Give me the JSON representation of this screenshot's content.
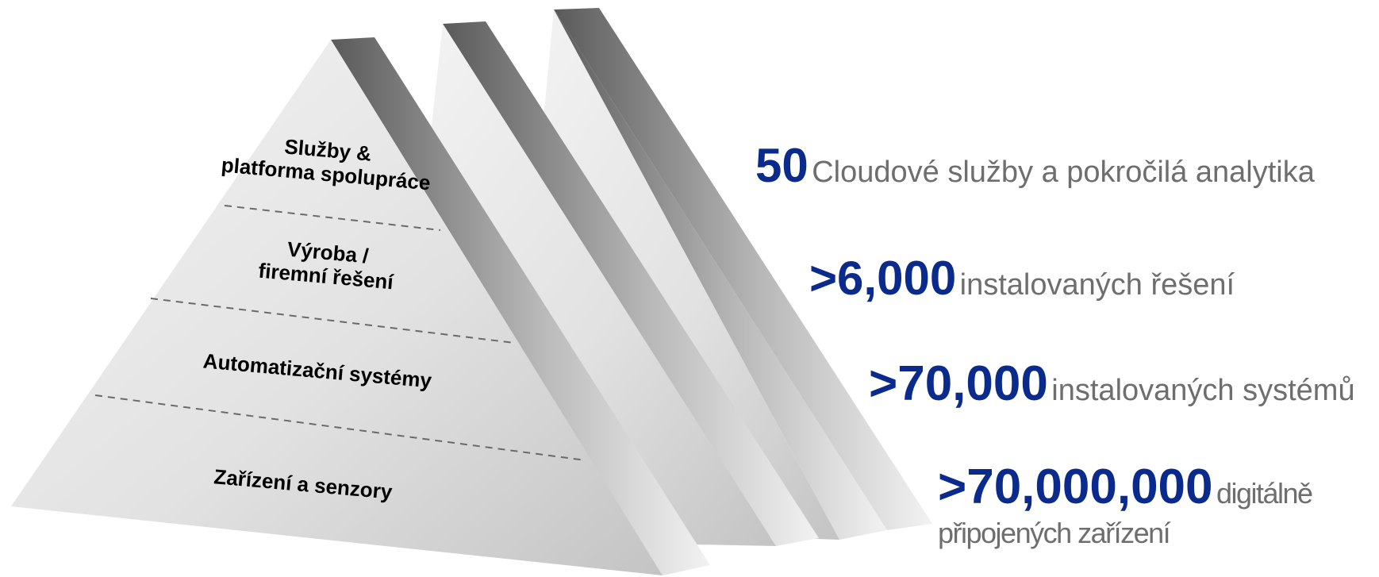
{
  "pyramid": {
    "layers": [
      {
        "line1": "Služby &",
        "line2": "platforma spolupráce"
      },
      {
        "line1": "Výroba /",
        "line2": "firemní řešení"
      },
      {
        "line1": "Automatizační systémy",
        "line2": ""
      },
      {
        "line1": "Zařízení a senzory",
        "line2": ""
      }
    ]
  },
  "stats": [
    {
      "number": "50",
      "text": "Cloudové služby a pokročilá analytika",
      "text2": ""
    },
    {
      "number": ">6,000",
      "text": "instalovaných řešení",
      "text2": ""
    },
    {
      "number": ">70,000",
      "text": "instalovaných systémů",
      "text2": ""
    },
    {
      "number": ">70,000,000",
      "text": "digitálně",
      "text2": "připojených zařízení"
    }
  ],
  "colors": {
    "number": "#0a2a8c",
    "description": "#6e6e6e"
  }
}
